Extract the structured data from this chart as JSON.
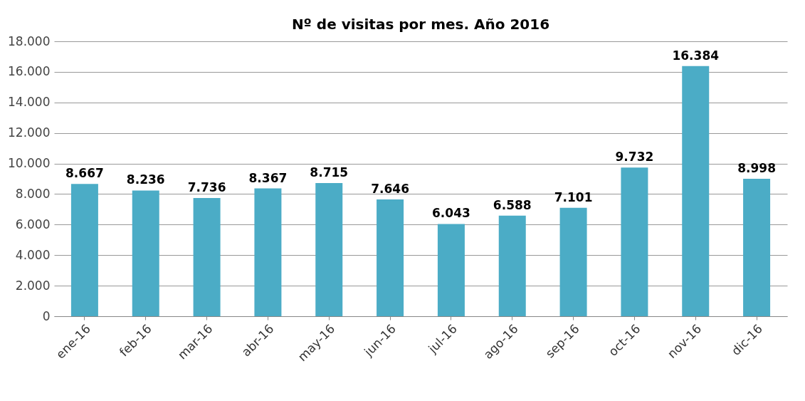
{
  "chart_data": {
    "type": "bar",
    "title": "Nº de visitas por mes. Año 2016",
    "categories": [
      "ene-16",
      "feb-16",
      "mar-16",
      "abr-16",
      "may-16",
      "jun-16",
      "jul-16",
      "ago-16",
      "sep-16",
      "oct-16",
      "nov-16",
      "dic-16"
    ],
    "values": [
      8667,
      8236,
      7736,
      8367,
      8715,
      7646,
      6043,
      6588,
      7101,
      9732,
      16384,
      8998
    ],
    "value_labels": [
      "8.667",
      "8.236",
      "7.736",
      "8.367",
      "8.715",
      "7.646",
      "6.043",
      "6.588",
      "7.101",
      "9.732",
      "16.384",
      "8.998"
    ],
    "color": "#4bacc6",
    "ylim": [
      0,
      18000
    ],
    "yticks": [
      0,
      {
        "value": 2000,
        "label": "2.000"
      },
      {
        "value": 4000,
        "label": "4.000"
      },
      {
        "value": 6000,
        "label": "6.000"
      },
      {
        "value": 8000,
        "label": "8.000"
      },
      {
        "value": 10000,
        "label": "10.000"
      },
      {
        "value": 12000,
        "label": "12.000"
      },
      {
        "value": 14000,
        "label": "14.000"
      },
      {
        "value": 16000,
        "label": "16.000"
      },
      {
        "value": 18000,
        "label": "18.000"
      }
    ],
    "grid": "y"
  }
}
